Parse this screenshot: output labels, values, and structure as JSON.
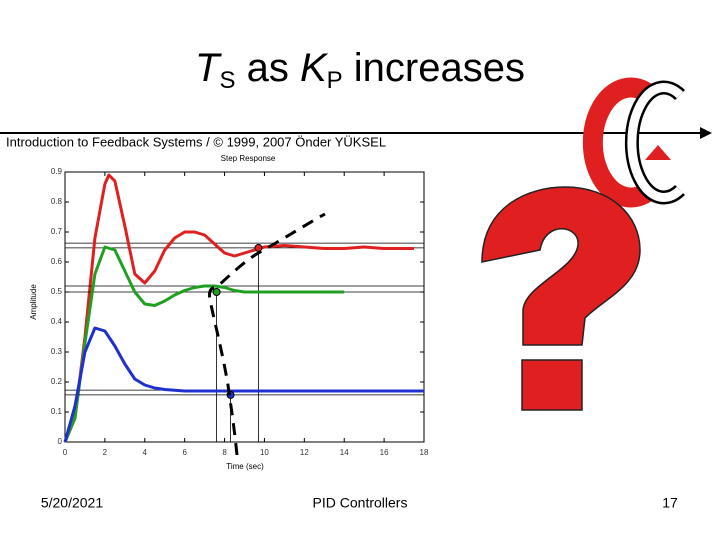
{
  "slide": {
    "title_parts": [
      "T",
      "S",
      " as ",
      "K",
      "P",
      " increases"
    ],
    "header": "Introduction to Feedback Systems / © 1999, 2007 Önder YÜKSEL",
    "footer_left": "5/20/2021",
    "footer_center": "PID Controllers",
    "footer_right": "17"
  },
  "chart_data": {
    "type": "line",
    "title": "Step Response",
    "xlabel": "Time (sec)",
    "ylabel": "Amplitude",
    "xlim": [
      0,
      18
    ],
    "ylim": [
      0,
      0.9
    ],
    "xticks": [
      0,
      2,
      4,
      6,
      8,
      10,
      12,
      14,
      16,
      18
    ],
    "yticks": [
      0,
      0.1,
      0.2,
      0.3,
      0.4,
      0.5,
      0.6,
      0.7,
      0.8,
      0.9
    ],
    "series": [
      {
        "color": "#e02020",
        "band": [
          0.647,
          0.663
        ],
        "ts": 9.7,
        "x": [
          0,
          0.5,
          1,
          1.5,
          2,
          2.2,
          2.5,
          3,
          3.5,
          4,
          4.5,
          5,
          5.5,
          6,
          6.5,
          7,
          7.5,
          8,
          8.5,
          9,
          10,
          11,
          12,
          13,
          14,
          15,
          16,
          17,
          17.5
        ],
        "values": [
          0,
          0.08,
          0.35,
          0.68,
          0.86,
          0.89,
          0.87,
          0.72,
          0.56,
          0.53,
          0.57,
          0.64,
          0.68,
          0.7,
          0.7,
          0.69,
          0.66,
          0.63,
          0.62,
          0.63,
          0.65,
          0.655,
          0.65,
          0.645,
          0.645,
          0.65,
          0.645,
          0.645,
          0.645
        ]
      },
      {
        "color": "#20a020",
        "band": [
          0.5,
          0.52
        ],
        "ts": 7.6,
        "x": [
          0,
          0.5,
          1,
          1.5,
          2,
          2.5,
          3,
          3.5,
          4,
          4.5,
          5,
          5.5,
          6,
          6.5,
          7,
          7.5,
          8,
          8.5,
          9,
          10,
          11,
          12,
          13,
          14
        ],
        "values": [
          0,
          0.08,
          0.33,
          0.56,
          0.65,
          0.64,
          0.57,
          0.5,
          0.46,
          0.455,
          0.47,
          0.49,
          0.505,
          0.515,
          0.52,
          0.52,
          0.515,
          0.505,
          0.5,
          0.5,
          0.5,
          0.5,
          0.5,
          0.5
        ]
      },
      {
        "color": "#2030d0",
        "band": [
          0.157,
          0.173
        ],
        "ts": 8.3,
        "x": [
          0,
          0.5,
          1,
          1.5,
          2,
          2.5,
          3,
          3.5,
          4,
          4.5,
          5,
          6,
          7,
          8,
          9,
          10,
          12,
          14,
          16,
          18
        ],
        "values": [
          0,
          0.12,
          0.3,
          0.38,
          0.37,
          0.32,
          0.26,
          0.21,
          0.19,
          0.18,
          0.175,
          0.17,
          0.17,
          0.17,
          0.17,
          0.17,
          0.17,
          0.17,
          0.17,
          0.17
        ]
      }
    ]
  }
}
